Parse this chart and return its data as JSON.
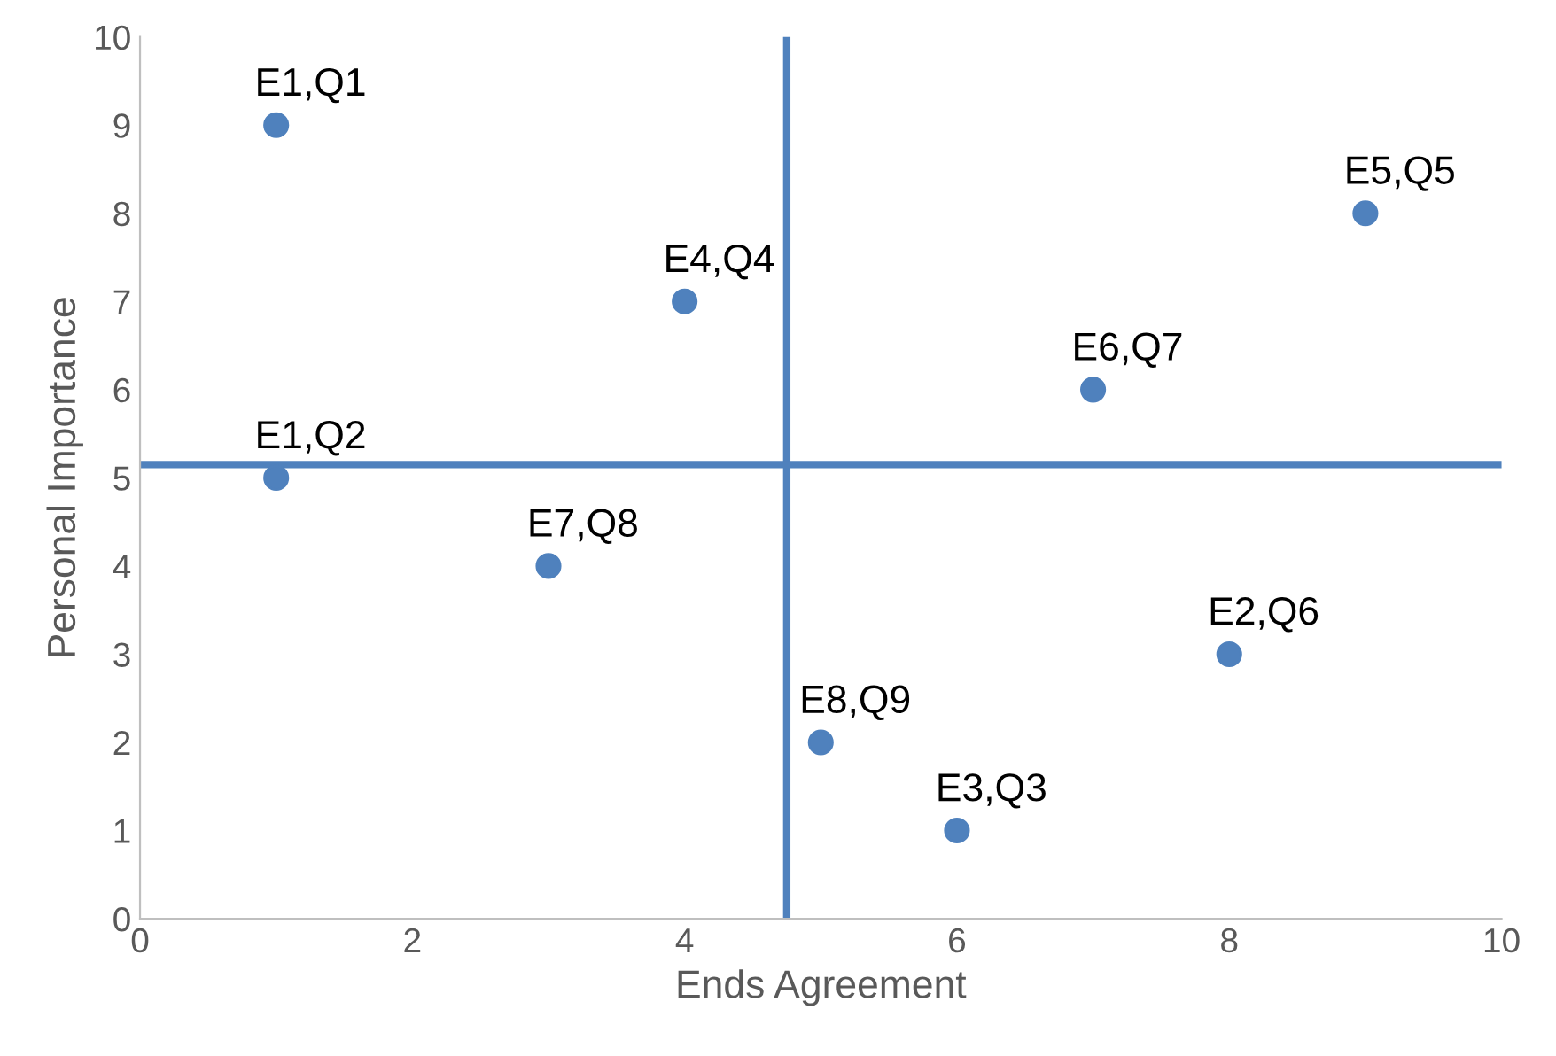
{
  "chart_data": {
    "type": "scatter",
    "xlabel": "Ends Agreement",
    "ylabel": "Personal Importance",
    "x": [
      1,
      4,
      1,
      3,
      9,
      7,
      8,
      5,
      6
    ],
    "series": [
      {
        "color": "#4f81bd",
        "values": [
          9,
          7,
          5,
          4,
          8,
          6,
          3,
          2,
          1
        ]
      }
    ],
    "annotations": [
      {
        "text": "E1,Q1",
        "x": 1,
        "y": 9
      },
      {
        "text": "E4,Q4",
        "x": 4,
        "y": 7
      },
      {
        "text": "E1,Q2",
        "x": 1,
        "y": 5
      },
      {
        "text": "E7,Q8",
        "x": 3,
        "y": 4
      },
      {
        "text": "E5,Q5",
        "x": 9,
        "y": 8
      },
      {
        "text": "E6,Q7",
        "x": 7,
        "y": 6
      },
      {
        "text": "E2,Q6",
        "x": 8,
        "y": 3
      },
      {
        "text": "E8,Q9",
        "x": 5,
        "y": 2
      },
      {
        "text": "E3,Q3",
        "x": 6,
        "y": 1
      }
    ],
    "ref_lines": [
      {
        "axis": "x",
        "value": 4.75,
        "color": "#4f81bd"
      },
      {
        "axis": "y",
        "value": 5.15,
        "color": "#4f81bd"
      }
    ],
    "xlim": [
      0,
      10
    ],
    "ylim": [
      0,
      10
    ],
    "xticks": [
      0,
      2,
      4,
      6,
      8,
      10
    ],
    "yticks": [
      0,
      1,
      2,
      3,
      4,
      5,
      6,
      7,
      8,
      9,
      10
    ],
    "grid": false,
    "legend": false,
    "marker": "circle"
  }
}
